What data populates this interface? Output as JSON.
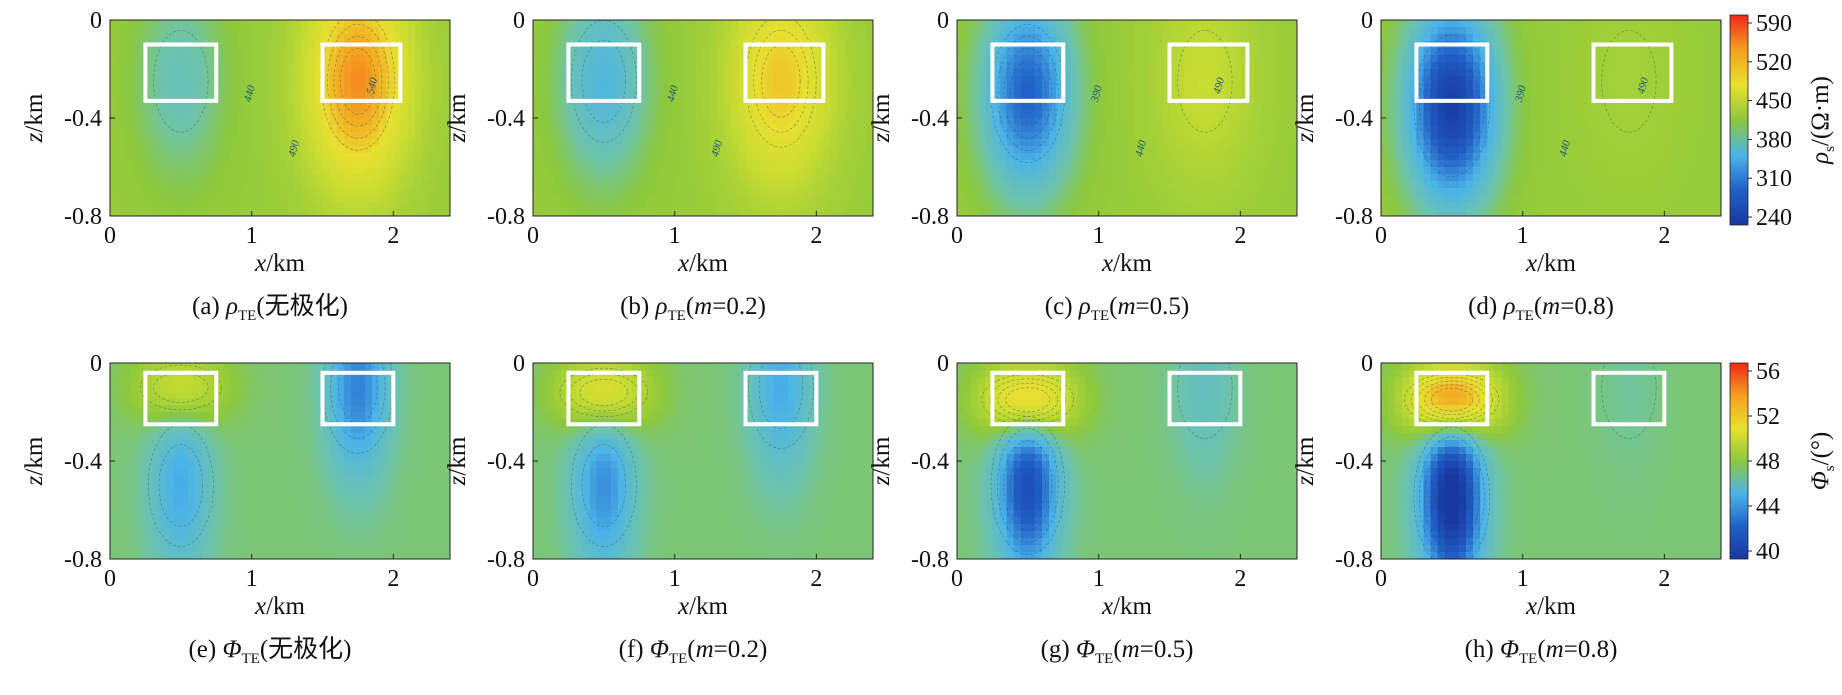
{
  "rows": [
    {
      "quantity": "rho",
      "colorbar": {
        "ticks": [
          "590",
          "520",
          "450",
          "380",
          "310",
          "240"
        ],
        "label": "ρs/(Ω·m)",
        "label_sym": "ρ",
        "label_sub": "s",
        "label_unit": "/(Ω·m)",
        "colors": [
          "#f02818",
          "#f5a020",
          "#e8e030",
          "#8cc83c",
          "#4cb4e8",
          "#2060c8",
          "#1838a0"
        ]
      },
      "panels": [
        {
          "caption_prefix": "(a)",
          "caption_sym": "ρ",
          "caption_sub": "TE",
          "caption_suffix": "(无极化)",
          "caption_m": "",
          "x_label": "x/km",
          "y_label": "z/km",
          "x_ticks": [
            "0",
            "1",
            "2"
          ],
          "y_ticks": [
            "0",
            "-0.4",
            "-0.8"
          ],
          "contour_labels": [
            "440",
            "490",
            "540"
          ],
          "boxes": [
            {
              "x": [
                0.25,
                0.75
              ],
              "z": [
                -0.1,
                -0.33
              ]
            },
            {
              "x": [
                1.5,
                2.05
              ],
              "z": [
                -0.1,
                -0.33
              ]
            }
          ],
          "anomalies": [
            {
              "x": 0.5,
              "z": -0.25,
              "kind": "low",
              "strength": 0.25
            },
            {
              "x": 1.75,
              "z": -0.25,
              "kind": "high",
              "strength": 0.7
            }
          ]
        },
        {
          "caption_prefix": "(b)",
          "caption_sym": "ρ",
          "caption_sub": "TE",
          "caption_suffix": "",
          "caption_m": "0.2",
          "x_label": "x/km",
          "y_label": "z/km",
          "x_ticks": [
            "0",
            "1",
            "2"
          ],
          "y_ticks": [
            "0",
            "-0.4",
            "-0.8"
          ],
          "contour_labels": [
            "440",
            "490"
          ],
          "boxes": [
            {
              "x": [
                0.25,
                0.75
              ],
              "z": [
                -0.1,
                -0.33
              ]
            },
            {
              "x": [
                1.5,
                2.05
              ],
              "z": [
                -0.1,
                -0.33
              ]
            }
          ],
          "anomalies": [
            {
              "x": 0.5,
              "z": -0.25,
              "kind": "low",
              "strength": 0.4
            },
            {
              "x": 1.75,
              "z": -0.25,
              "kind": "high",
              "strength": 0.5
            }
          ]
        },
        {
          "caption_prefix": "(c)",
          "caption_sym": "ρ",
          "caption_sub": "TE",
          "caption_suffix": "",
          "caption_m": "0.5",
          "x_label": "x/km",
          "y_label": "z/km",
          "x_ticks": [
            "0",
            "1",
            "2"
          ],
          "y_ticks": [
            "0",
            "-0.4",
            "-0.8"
          ],
          "contour_labels": [
            "390",
            "440",
            "490"
          ],
          "boxes": [
            {
              "x": [
                0.25,
                0.75
              ],
              "z": [
                -0.1,
                -0.33
              ]
            },
            {
              "x": [
                1.5,
                2.05
              ],
              "z": [
                -0.1,
                -0.33
              ]
            }
          ],
          "anomalies": [
            {
              "x": 0.5,
              "z": -0.3,
              "kind": "low",
              "strength": 0.75
            },
            {
              "x": 1.75,
              "z": -0.25,
              "kind": "high",
              "strength": 0.2
            }
          ]
        },
        {
          "caption_prefix": "(d)",
          "caption_sym": "ρ",
          "caption_sub": "TE",
          "caption_suffix": "",
          "caption_m": "0.8",
          "x_label": "x/km",
          "y_label": "z/km",
          "x_ticks": [
            "0",
            "1",
            "2"
          ],
          "y_ticks": [
            "0",
            "-0.4",
            "-0.8"
          ],
          "contour_labels": [
            "390",
            "440",
            "490"
          ],
          "boxes": [
            {
              "x": [
                0.25,
                0.75
              ],
              "z": [
                -0.1,
                -0.33
              ]
            },
            {
              "x": [
                1.5,
                2.05
              ],
              "z": [
                -0.1,
                -0.33
              ]
            }
          ],
          "anomalies": [
            {
              "x": 0.5,
              "z": -0.35,
              "kind": "low",
              "strength": 1.0
            },
            {
              "x": 1.75,
              "z": -0.25,
              "kind": "high",
              "strength": 0.05
            }
          ]
        }
      ]
    },
    {
      "quantity": "phi",
      "colorbar": {
        "ticks": [
          "56",
          "52",
          "48",
          "44",
          "40"
        ],
        "label": "Φs/(°)",
        "label_sym": "Φ",
        "label_sub": "s",
        "label_unit": "/(°)",
        "colors": [
          "#f02818",
          "#f5a020",
          "#e8e030",
          "#8cc83c",
          "#4cb4e8",
          "#2060c8",
          "#1838a0"
        ]
      },
      "panels": [
        {
          "caption_prefix": "(e)",
          "caption_sym": "Φ",
          "caption_sub": "TE",
          "caption_suffix": "(无极化)",
          "caption_m": "",
          "x_label": "x/km",
          "y_label": "z/km",
          "x_ticks": [
            "0",
            "1",
            "2"
          ],
          "y_ticks": [
            "0",
            "-0.4",
            "-0.8"
          ],
          "contour_labels": [],
          "boxes": [
            {
              "x": [
                0.25,
                0.75
              ],
              "z": [
                -0.04,
                -0.25
              ]
            },
            {
              "x": [
                1.5,
                2.0
              ],
              "z": [
                -0.04,
                -0.25
              ]
            }
          ],
          "anomalies": [
            {
              "x": 0.5,
              "z": -0.1,
              "kind": "phase-high",
              "strength": 0.4
            },
            {
              "x": 0.5,
              "z": -0.5,
              "kind": "phase-low",
              "strength": 0.35
            },
            {
              "x": 1.75,
              "z": -0.1,
              "kind": "phase-low",
              "strength": 0.5
            }
          ]
        },
        {
          "caption_prefix": "(f)",
          "caption_sym": "Φ",
          "caption_sub": "TE",
          "caption_suffix": "",
          "caption_m": "0.2",
          "x_label": "x/km",
          "y_label": "z/km",
          "x_ticks": [
            "0",
            "1",
            "2"
          ],
          "y_ticks": [
            "0",
            "-0.4",
            "-0.8"
          ],
          "contour_labels": [],
          "boxes": [
            {
              "x": [
                0.25,
                0.75
              ],
              "z": [
                -0.04,
                -0.25
              ]
            },
            {
              "x": [
                1.5,
                2.0
              ],
              "z": [
                -0.04,
                -0.25
              ]
            }
          ],
          "anomalies": [
            {
              "x": 0.5,
              "z": -0.12,
              "kind": "phase-high",
              "strength": 0.55
            },
            {
              "x": 0.5,
              "z": -0.5,
              "kind": "phase-low",
              "strength": 0.45
            },
            {
              "x": 1.75,
              "z": -0.1,
              "kind": "phase-low",
              "strength": 0.35
            }
          ]
        },
        {
          "caption_prefix": "(g)",
          "caption_sym": "Φ",
          "caption_sub": "TE",
          "caption_suffix": "",
          "caption_m": "0.5",
          "x_label": "x/km",
          "y_label": "z/km",
          "x_ticks": [
            "0",
            "1",
            "2"
          ],
          "y_ticks": [
            "0",
            "-0.4",
            "-0.8"
          ],
          "contour_labels": [],
          "boxes": [
            {
              "x": [
                0.25,
                0.75
              ],
              "z": [
                -0.04,
                -0.25
              ]
            },
            {
              "x": [
                1.5,
                2.0
              ],
              "z": [
                -0.04,
                -0.25
              ]
            }
          ],
          "anomalies": [
            {
              "x": 0.5,
              "z": -0.15,
              "kind": "phase-high",
              "strength": 0.8
            },
            {
              "x": 0.5,
              "z": -0.5,
              "kind": "phase-low",
              "strength": 0.75
            },
            {
              "x": 1.75,
              "z": -0.1,
              "kind": "phase-low",
              "strength": 0.15
            }
          ]
        },
        {
          "caption_prefix": "(h)",
          "caption_sym": "Φ",
          "caption_sub": "TE",
          "caption_suffix": "",
          "caption_m": "0.8",
          "x_label": "x/km",
          "y_label": "z/km",
          "x_ticks": [
            "0",
            "1",
            "2"
          ],
          "y_ticks": [
            "0",
            "-0.4",
            "-0.8"
          ],
          "contour_labels": [],
          "boxes": [
            {
              "x": [
                0.25,
                0.75
              ],
              "z": [
                -0.04,
                -0.25
              ]
            },
            {
              "x": [
                1.5,
                2.0
              ],
              "z": [
                -0.04,
                -0.25
              ]
            }
          ],
          "anomalies": [
            {
              "x": 0.5,
              "z": -0.15,
              "kind": "phase-high",
              "strength": 1.0
            },
            {
              "x": 0.5,
              "z": -0.55,
              "kind": "phase-low",
              "strength": 1.0
            },
            {
              "x": 1.75,
              "z": -0.1,
              "kind": "phase-low",
              "strength": 0.05
            }
          ]
        }
      ]
    }
  ],
  "chart_data": {
    "type": "heatmap",
    "x_range": [
      0,
      2.4
    ],
    "z_range": [
      -0.8,
      0
    ],
    "x_unit": "km",
    "z_unit": "km",
    "rho_colorbar_range": [
      240,
      590
    ],
    "phi_colorbar_range": [
      40,
      56
    ],
    "rho_background": 490,
    "phi_background": 45
  }
}
